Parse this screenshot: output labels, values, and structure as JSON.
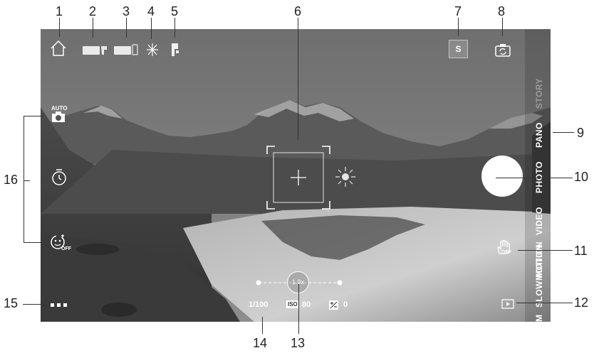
{
  "callouts": [
    "1",
    "2",
    "3",
    "4",
    "5",
    "6",
    "7",
    "8",
    "9",
    "10",
    "11",
    "12",
    "13",
    "14",
    "15",
    "16"
  ],
  "top_bar": {
    "story_badge": "S"
  },
  "left_bar": {
    "auto_label": "AUTO",
    "smile_off_label": "OFF"
  },
  "modes": {
    "story": "STORY",
    "pano": "PANO",
    "photo": "PHOTO",
    "video": "VIDEO",
    "motion": "MOTION",
    "slowmotion": "SLOWMOTION",
    "m": "M"
  },
  "gesture": {
    "off_label": "OFF"
  },
  "zoom": {
    "value": "1.0x"
  },
  "exposure": {
    "shutter": "1/100",
    "iso_label": "ISO",
    "iso_value": "80",
    "ev_value": "0"
  },
  "colors": {
    "overlay_white": "#ffffff",
    "callout_text": "#222222"
  }
}
